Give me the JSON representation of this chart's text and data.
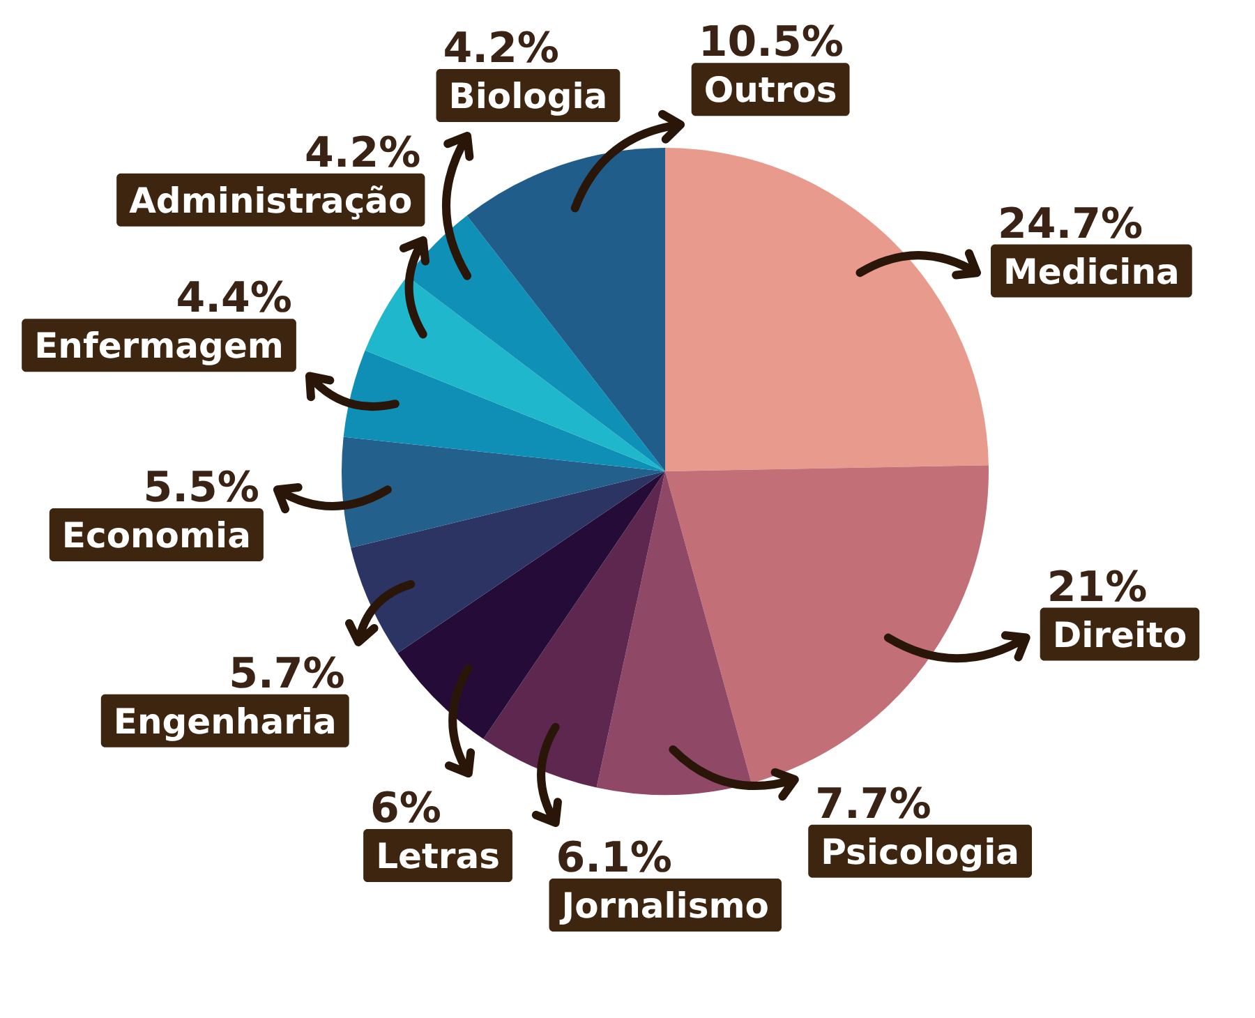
{
  "chart_data": {
    "type": "pie",
    "categories": [
      "Medicina",
      "Direito",
      "Psicologia",
      "Jornalismo",
      "Letras",
      "Engenharia",
      "Economia",
      "Enfermagem",
      "Administração",
      "Biologia",
      "Outros"
    ],
    "values": [
      24.7,
      21,
      7.7,
      6.1,
      6,
      5.7,
      5.5,
      4.4,
      4.2,
      4.2,
      10.5
    ],
    "value_labels": [
      "24.7%",
      "21%",
      "7.7%",
      "6.1%",
      "6%",
      "5.7%",
      "5.5%",
      "4.4%",
      "4.2%",
      "4.2%",
      "10.5%"
    ],
    "colors": [
      "#e89a8c",
      "#c26f78",
      "#8f4866",
      "#5e2750",
      "#250c38",
      "#2c3463",
      "#23608c",
      "#0f8fb5",
      "#1fb7cb",
      "#0f90b6",
      "#215d8a"
    ]
  }
}
